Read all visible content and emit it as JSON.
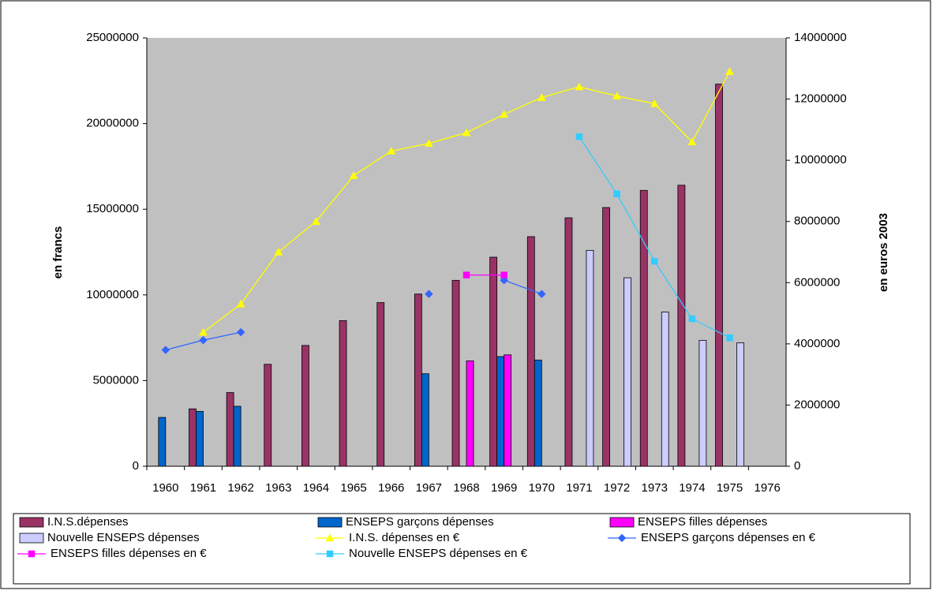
{
  "chart_data": {
    "type": "bar",
    "categories": [
      "1960",
      "1961",
      "1962",
      "1963",
      "1964",
      "1965",
      "1966",
      "1967",
      "1968",
      "1969",
      "1970",
      "1971",
      "1972",
      "1973",
      "1974",
      "1975",
      "1976"
    ],
    "ylabel": "en francs",
    "y2label": "en euros 2003",
    "ylim": [
      0,
      25000000
    ],
    "yticks": [
      0,
      5000000,
      10000000,
      15000000,
      20000000,
      25000000
    ],
    "y2lim": [
      0,
      14000000
    ],
    "y2ticks": [
      0,
      2000000,
      4000000,
      6000000,
      8000000,
      10000000,
      12000000,
      14000000
    ],
    "legend": "bottom",
    "background": "#c0c0c0",
    "series": [
      {
        "name": "I.N.S.dépenses",
        "color": "#993366",
        "values": [
          null,
          3350000,
          4300000,
          5950000,
          7050000,
          8500000,
          9550000,
          10050000,
          10850000,
          12200000,
          13400000,
          14500000,
          15100000,
          16100000,
          16400000,
          22300000,
          null
        ]
      },
      {
        "name": "ENSEPS garçons dépenses",
        "color": "#0066cc",
        "values": [
          2850000,
          3200000,
          3500000,
          null,
          null,
          null,
          null,
          5400000,
          null,
          6400000,
          6200000,
          null,
          null,
          null,
          null,
          null,
          null
        ]
      },
      {
        "name": "ENSEPS filles dépenses",
        "color": "#ff00ff",
        "values": [
          null,
          null,
          null,
          null,
          null,
          null,
          null,
          null,
          6150000,
          6500000,
          null,
          null,
          null,
          null,
          null,
          null,
          null
        ]
      },
      {
        "name": "Nouvelle ENSEPS dépenses",
        "color": "#ccccff",
        "values": [
          null,
          null,
          null,
          null,
          null,
          null,
          null,
          null,
          null,
          null,
          null,
          12600000,
          11000000,
          9000000,
          7350000,
          7200000,
          null
        ]
      },
      {
        "name": "I.N.S. dépenses en €",
        "color": "#ffff00",
        "axis": "y2",
        "marker": "triangle",
        "values": [
          null,
          4380000,
          5300000,
          7000000,
          8000000,
          9500000,
          10300000,
          10550000,
          10900000,
          11500000,
          12050000,
          12400000,
          12100000,
          11850000,
          10600000,
          12900000,
          null
        ]
      },
      {
        "name": "ENSEPS garçons dépenses en €",
        "color": "#3366ff",
        "axis": "y2",
        "marker": "diamond",
        "values": [
          3800000,
          4120000,
          4380000,
          null,
          null,
          null,
          null,
          5630000,
          null,
          6080000,
          5630000,
          null,
          null,
          null,
          null,
          null,
          null
        ]
      },
      {
        "name": "ENSEPS filles dépenses en €",
        "color": "#ff00ff",
        "axis": "y2",
        "marker": "square",
        "values": [
          null,
          null,
          null,
          null,
          null,
          null,
          null,
          null,
          6250000,
          6250000,
          null,
          null,
          null,
          null,
          null,
          null,
          null
        ]
      },
      {
        "name": "Nouvelle ENSEPS dépenses en €",
        "color": "#33ccff",
        "axis": "y2",
        "marker": "square",
        "values": [
          null,
          null,
          null,
          null,
          null,
          null,
          null,
          null,
          null,
          null,
          null,
          10770000,
          8900000,
          6700000,
          4820000,
          4200000,
          null
        ]
      }
    ]
  }
}
